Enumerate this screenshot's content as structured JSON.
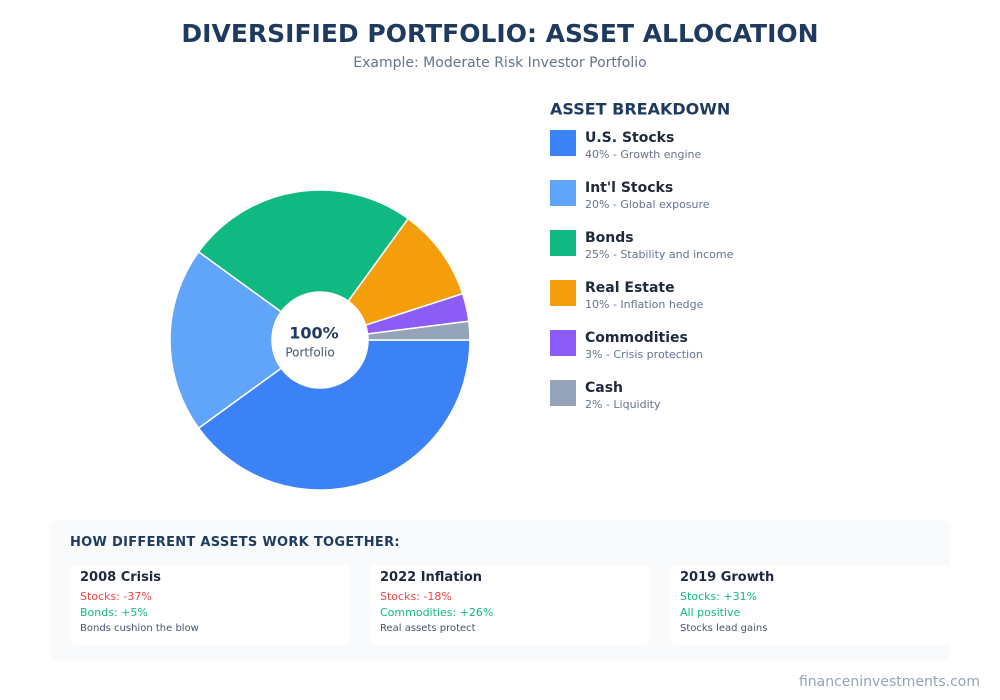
{
  "chart_data": {
    "type": "pie",
    "title": "DIVERSIFIED PORTFOLIO: ASSET ALLOCATION",
    "subtitle": "Example: Moderate Risk Investor Portfolio",
    "categories": [
      "U.S. Stocks",
      "Int'l Stocks",
      "Bonds",
      "Real Estate",
      "Commodities",
      "Cash"
    ],
    "values": [
      40,
      20,
      25,
      10,
      3,
      2
    ],
    "colors": [
      "#3b82f6",
      "#60a5fa",
      "#10b981",
      "#f59e0b",
      "#8b5cf6",
      "#94a3b8"
    ],
    "descriptions": [
      "40% - Growth engine",
      "20% - Global exposure",
      "25% - Stability and income",
      "10% - Inflation hedge",
      "3% - Crisis protection",
      "2% - Liquidity"
    ],
    "legend_title": "ASSET BREAKDOWN",
    "center_label": "100%",
    "center_sublabel": "Portfolio"
  },
  "panel": {
    "title": "HOW DIFFERENT ASSETS WORK TOGETHER:",
    "cards": [
      {
        "title": "2008 Crisis",
        "lines": [
          {
            "text": "Stocks: -37%",
            "color": "#ef4444"
          },
          {
            "text": "Bonds: +5%",
            "color": "#10b981"
          }
        ],
        "note": "Bonds cushion the blow"
      },
      {
        "title": "2022 Inflation",
        "lines": [
          {
            "text": "Stocks: -18%",
            "color": "#ef4444"
          },
          {
            "text": "Commodities: +26%",
            "color": "#10b981"
          }
        ],
        "note": "Real assets protect"
      },
      {
        "title": "2019 Growth",
        "lines": [
          {
            "text": "Stocks: +31%",
            "color": "#10b981"
          },
          {
            "text": "All positive",
            "color": "#10b981"
          }
        ],
        "note": "Stocks lead gains"
      }
    ]
  },
  "footer": "financeninvestments.com"
}
